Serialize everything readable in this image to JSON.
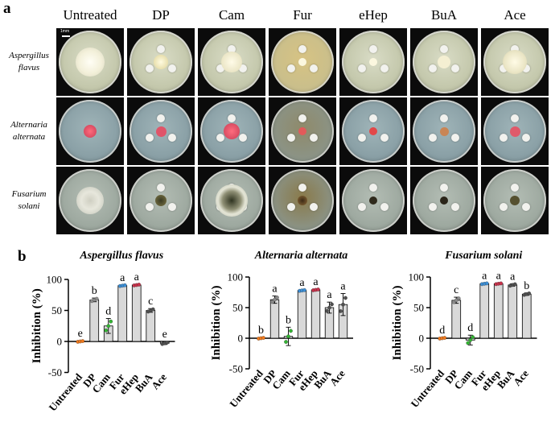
{
  "panel_a": {
    "label": "a",
    "columns": [
      "Untreated",
      "DP",
      "Cam",
      "Fur",
      "eHep",
      "BuA",
      "Ace"
    ],
    "rows": [
      {
        "name": [
          "Aspergillus",
          "flavus"
        ]
      },
      {
        "name": [
          "Alternaria",
          "alternata"
        ]
      },
      {
        "name": [
          "Fusarium",
          "solani"
        ]
      }
    ],
    "scale_label": "1mm"
  },
  "panel_b": {
    "label": "b"
  },
  "chart_data": [
    {
      "type": "bar",
      "title": "Aspergillus flavus",
      "ylabel": "Inhibition (%)",
      "ylim": [
        -50,
        100
      ],
      "yticks": [
        -50,
        0,
        50,
        100
      ],
      "categories": [
        "Untreated",
        "DP",
        "Cam",
        "Fur",
        "eHep",
        "BuA",
        "Ace"
      ],
      "values": [
        0,
        67,
        25,
        90,
        91,
        50,
        -3
      ],
      "errors": [
        1,
        3,
        12,
        1,
        1,
        3,
        2
      ],
      "letters": [
        "e",
        "b",
        "d",
        "a",
        "a",
        "c",
        "e"
      ],
      "point_colors": [
        "#f07a1e",
        "#8c8c8c",
        "#32b432",
        "#3c8fd6",
        "#c8324b",
        "#505050",
        "#505050"
      ]
    },
    {
      "type": "bar",
      "title": "Alternaria alternata",
      "ylabel": "Inhibition (%)",
      "ylim": [
        -50,
        100
      ],
      "yticks": [
        -50,
        0,
        50,
        100
      ],
      "categories": [
        "Untreated",
        "DP",
        "Cam",
        "Fur",
        "eHep",
        "BuA",
        "Ace"
      ],
      "values": [
        0,
        63,
        3,
        78,
        79,
        50,
        55
      ],
      "errors": [
        1,
        6,
        15,
        1,
        1,
        9,
        18
      ],
      "letters": [
        "b",
        "a",
        "b",
        "a",
        "a",
        "a",
        "a"
      ],
      "point_colors": [
        "#f07a1e",
        "#8c8c8c",
        "#32b432",
        "#3c8fd6",
        "#c8324b",
        "#505050",
        "#505050"
      ]
    },
    {
      "type": "bar",
      "title": "Fusarium solani",
      "ylabel": "Inhibition (%)",
      "ylim": [
        -50,
        100
      ],
      "yticks": [
        -50,
        0,
        50,
        100
      ],
      "categories": [
        "Untreated",
        "DP",
        "Cam",
        "Fur",
        "eHep",
        "BuA",
        "Ace"
      ],
      "values": [
        0,
        62,
        -3,
        89,
        89,
        87,
        72
      ],
      "errors": [
        1,
        5,
        8,
        1,
        1,
        2,
        2
      ],
      "letters": [
        "d",
        "c",
        "d",
        "a",
        "a",
        "a",
        "b"
      ],
      "point_colors": [
        "#f07a1e",
        "#8c8c8c",
        "#32b432",
        "#3c8fd6",
        "#c8324b",
        "#505050",
        "#505050"
      ]
    }
  ]
}
